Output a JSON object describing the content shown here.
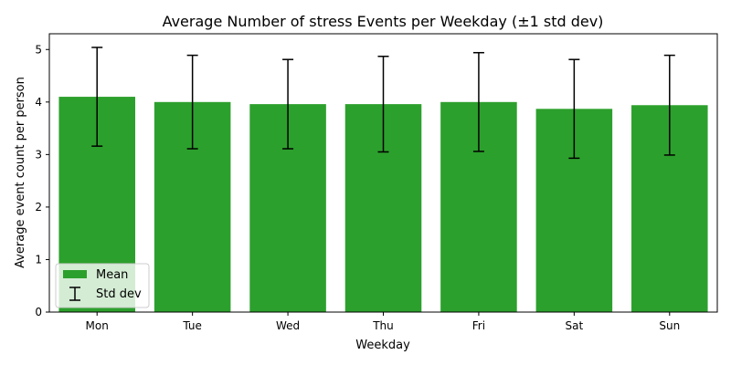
{
  "chart_data": {
    "type": "bar",
    "title": "Average Number of stress Events per Weekday (±1 std dev)",
    "xlabel": "Weekday",
    "ylabel": "Average event count per person",
    "categories": [
      "Mon",
      "Tue",
      "Wed",
      "Thu",
      "Fri",
      "Sat",
      "Sun"
    ],
    "series": [
      {
        "name": "Mean",
        "values": [
          4.1,
          4.0,
          3.96,
          3.96,
          4.0,
          3.87,
          3.94
        ],
        "error": [
          0.94,
          0.89,
          0.85,
          0.91,
          0.94,
          0.94,
          0.95
        ]
      }
    ],
    "error_legend_label": "Std dev",
    "ylim": [
      0,
      5.3
    ],
    "yticks": [
      0,
      1,
      2,
      3,
      4,
      5
    ],
    "grid": false,
    "legend_position": "lower-left",
    "colors": {
      "bar": "#2ca02c",
      "error": "#000000",
      "axis": "#000000"
    }
  }
}
